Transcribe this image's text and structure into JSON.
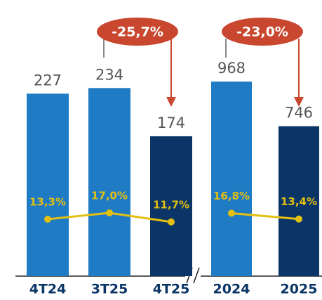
{
  "chart_data": [
    {
      "type": "bar",
      "categories": [
        "4T24",
        "3T25",
        "4T25"
      ],
      "series": [
        {
          "values": [
            227,
            234,
            174
          ],
          "colors": [
            "#1f7bc4",
            "#1f7bc4",
            "#0a3566"
          ]
        },
        {
          "type": "line",
          "axis": "y2",
          "color": "#e3bf12",
          "values": [
            13.3,
            17.0,
            11.7
          ],
          "value_labels": [
            "13,3%",
            "17,0%",
            "11,7%"
          ]
        }
      ],
      "ylim": [
        0,
        250
      ],
      "y2lim": [
        -20,
        100
      ],
      "annotations": [
        {
          "text": "-25,7%",
          "value": -25.7
        }
      ]
    },
    {
      "type": "bar",
      "categories": [
        "2024",
        "2025"
      ],
      "series": [
        {
          "values": [
            968,
            746
          ],
          "colors": [
            "#1f7bc4",
            "#0a3566"
          ]
        },
        {
          "type": "line",
          "axis": "y2",
          "color": "#e3bf12",
          "values": [
            16.8,
            13.4
          ],
          "value_labels": [
            "16,8%",
            "13,4%"
          ]
        }
      ],
      "ylim": [
        0,
        1000
      ],
      "y2lim": [
        -20,
        100
      ],
      "annotations": [
        {
          "text": "-23,0%",
          "value": -23.0
        }
      ]
    }
  ]
}
